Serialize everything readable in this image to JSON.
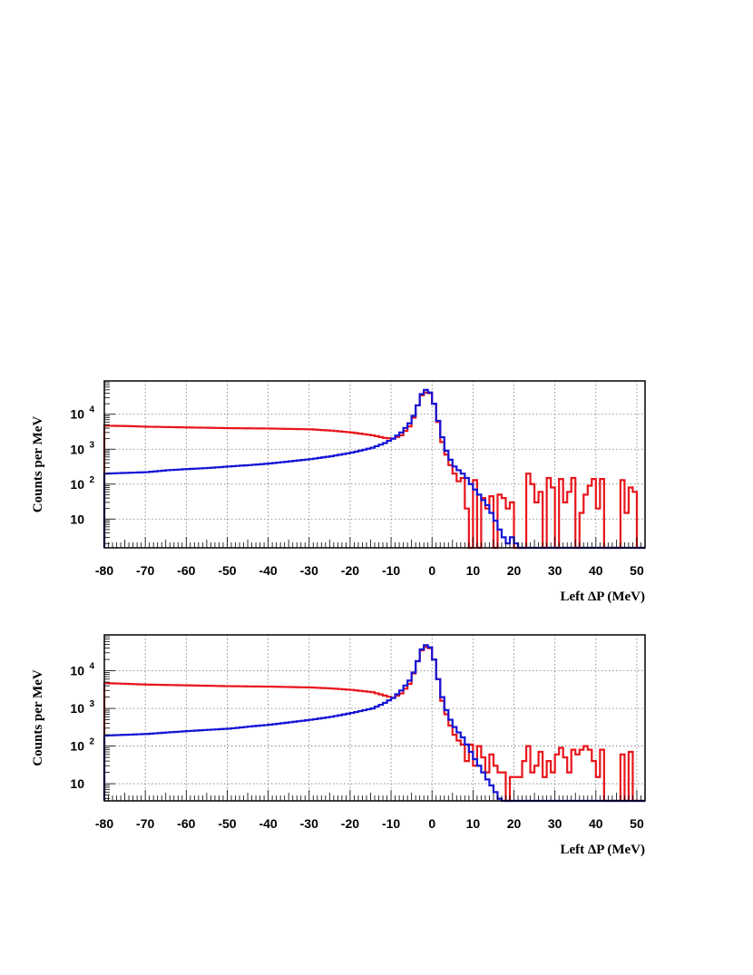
{
  "chart_data": [
    {
      "type": "histogram",
      "xlabel": "Left ΔP (MeV)",
      "ylabel": "Counts per MeV",
      "xlim": [
        -80,
        52
      ],
      "ylim": [
        1.5,
        90000
      ],
      "yscale": "log",
      "xticks": [
        -80,
        -70,
        -60,
        -50,
        -40,
        -30,
        -20,
        -10,
        0,
        10,
        20,
        30,
        40,
        50
      ],
      "yticks": [
        {
          "value": 10,
          "base": "10",
          "exp": ""
        },
        {
          "value": 100,
          "base": "10",
          "exp": "2"
        },
        {
          "value": 1000,
          "base": "10",
          "exp": "3"
        },
        {
          "value": 10000,
          "base": "10",
          "exp": "4"
        }
      ],
      "grid": true,
      "bin_width": 1,
      "series": [
        {
          "color": "#e8151b",
          "anchors": [
            [
              -80,
              4700
            ],
            [
              -75,
              4600
            ],
            [
              -70,
              4400
            ],
            [
              -60,
              4200
            ],
            [
              -50,
              4000
            ],
            [
              -40,
              3900
            ],
            [
              -30,
              3700
            ],
            [
              -25,
              3400
            ],
            [
              -20,
              3000
            ],
            [
              -15,
              2500
            ],
            [
              -12,
              2100
            ],
            [
              -10,
              2000
            ],
            [
              -8,
              2500
            ],
            [
              -6,
              4500
            ],
            [
              -5,
              8000
            ],
            [
              -4,
              18000
            ],
            [
              -3,
              35000
            ],
            [
              -2,
              42000
            ],
            [
              -1,
              40000
            ],
            [
              0,
              20000
            ],
            [
              1,
              6000
            ],
            [
              2,
              1600
            ],
            [
              3,
              700
            ],
            [
              4,
              350
            ],
            [
              5,
              200
            ],
            [
              6,
              120
            ]
          ],
          "sparse": [
            [
              7,
              150
            ],
            [
              8,
              20
            ],
            [
              10,
              130
            ],
            [
              12,
              40
            ],
            [
              13,
              20
            ],
            [
              14,
              45
            ],
            [
              16,
              50
            ],
            [
              17,
              40
            ],
            [
              18,
              20
            ],
            [
              19,
              30
            ],
            [
              23,
              200
            ],
            [
              24,
              100
            ],
            [
              25,
              30
            ],
            [
              26,
              60
            ],
            [
              28,
              150
            ],
            [
              29,
              80
            ],
            [
              31,
              140
            ],
            [
              32,
              30
            ],
            [
              33,
              60
            ],
            [
              34,
              150
            ],
            [
              36,
              15
            ],
            [
              37,
              50
            ],
            [
              38,
              90
            ],
            [
              39,
              140
            ],
            [
              40,
              20
            ],
            [
              41,
              140
            ],
            [
              46,
              130
            ],
            [
              47,
              15
            ],
            [
              48,
              80
            ],
            [
              49,
              60
            ]
          ]
        },
        {
          "color": "#1414d6",
          "anchors": [
            [
              -80,
              200
            ],
            [
              -75,
              210
            ],
            [
              -70,
              220
            ],
            [
              -65,
              250
            ],
            [
              -60,
              270
            ],
            [
              -55,
              290
            ],
            [
              -50,
              320
            ],
            [
              -45,
              350
            ],
            [
              -40,
              390
            ],
            [
              -35,
              450
            ],
            [
              -30,
              520
            ],
            [
              -25,
              630
            ],
            [
              -20,
              800
            ],
            [
              -15,
              1100
            ],
            [
              -12,
              1500
            ],
            [
              -10,
              2000
            ],
            [
              -8,
              3000
            ],
            [
              -6,
              5500
            ],
            [
              -5,
              9000
            ],
            [
              -4,
              18000
            ],
            [
              -3,
              38000
            ],
            [
              -2,
              50000
            ],
            [
              -1,
              42000
            ],
            [
              0,
              20000
            ],
            [
              1,
              6500
            ],
            [
              2,
              2200
            ],
            [
              3,
              900
            ],
            [
              4,
              500
            ],
            [
              5,
              320
            ],
            [
              6,
              250
            ],
            [
              7,
              200
            ],
            [
              8,
              150
            ],
            [
              9,
              100
            ],
            [
              10,
              70
            ],
            [
              11,
              50
            ],
            [
              12,
              35
            ],
            [
              13,
              25
            ],
            [
              14,
              15
            ],
            [
              15,
              9
            ],
            [
              16,
              5
            ],
            [
              17,
              3
            ],
            [
              18,
              2
            ],
            [
              19,
              3
            ],
            [
              20,
              2
            ]
          ]
        }
      ]
    },
    {
      "type": "histogram",
      "xlabel": "Left ΔP (MeV)",
      "ylabel": "Counts per MeV",
      "xlim": [
        -80,
        52
      ],
      "ylim": [
        3.5,
        90000
      ],
      "yscale": "log",
      "xticks": [
        -80,
        -70,
        -60,
        -50,
        -40,
        -30,
        -20,
        -10,
        0,
        10,
        20,
        30,
        40,
        50
      ],
      "yticks": [
        {
          "value": 10,
          "base": "10",
          "exp": ""
        },
        {
          "value": 100,
          "base": "10",
          "exp": "2"
        },
        {
          "value": 1000,
          "base": "10",
          "exp": "3"
        },
        {
          "value": 10000,
          "base": "10",
          "exp": "4"
        }
      ],
      "grid": true,
      "bin_width": 1,
      "series": [
        {
          "color": "#e8151b",
          "anchors": [
            [
              -80,
              4700
            ],
            [
              -75,
              4500
            ],
            [
              -70,
              4300
            ],
            [
              -60,
              4100
            ],
            [
              -50,
              3900
            ],
            [
              -40,
              3800
            ],
            [
              -30,
              3600
            ],
            [
              -25,
              3400
            ],
            [
              -20,
              3100
            ],
            [
              -15,
              2700
            ],
            [
              -12,
              2200
            ],
            [
              -10,
              1900
            ],
            [
              -8,
              2500
            ],
            [
              -6,
              4500
            ],
            [
              -5,
              8500
            ],
            [
              -4,
              18000
            ],
            [
              -3,
              35000
            ],
            [
              -2,
              43000
            ],
            [
              -1,
              40000
            ],
            [
              0,
              20000
            ],
            [
              1,
              6000
            ],
            [
              2,
              1600
            ],
            [
              3,
              700
            ],
            [
              4,
              350
            ],
            [
              5,
              200
            ],
            [
              6,
              140
            ]
          ],
          "sparse": [
            [
              7,
              110
            ],
            [
              8,
              40
            ],
            [
              9,
              110
            ],
            [
              10,
              30
            ],
            [
              11,
              100
            ],
            [
              12,
              50
            ],
            [
              13,
              20
            ],
            [
              14,
              60
            ],
            [
              15,
              30
            ],
            [
              16,
              20
            ],
            [
              17,
              20
            ],
            [
              19,
              15
            ],
            [
              20,
              15
            ],
            [
              21,
              15
            ],
            [
              22,
              40
            ],
            [
              23,
              100
            ],
            [
              24,
              20
            ],
            [
              25,
              30
            ],
            [
              26,
              70
            ],
            [
              27,
              15
            ],
            [
              28,
              40
            ],
            [
              29,
              20
            ],
            [
              30,
              60
            ],
            [
              31,
              90
            ],
            [
              32,
              50
            ],
            [
              33,
              20
            ],
            [
              34,
              80
            ],
            [
              35,
              60
            ],
            [
              36,
              80
            ],
            [
              37,
              100
            ],
            [
              38,
              80
            ],
            [
              39,
              40
            ],
            [
              40,
              15
            ],
            [
              41,
              80
            ],
            [
              46,
              60
            ],
            [
              48,
              70
            ]
          ]
        },
        {
          "color": "#1414d6",
          "anchors": [
            [
              -80,
              190
            ],
            [
              -75,
              200
            ],
            [
              -70,
              210
            ],
            [
              -65,
              230
            ],
            [
              -60,
              250
            ],
            [
              -55,
              270
            ],
            [
              -50,
              290
            ],
            [
              -45,
              330
            ],
            [
              -40,
              370
            ],
            [
              -35,
              430
            ],
            [
              -30,
              500
            ],
            [
              -25,
              600
            ],
            [
              -20,
              760
            ],
            [
              -15,
              1000
            ],
            [
              -12,
              1400
            ],
            [
              -10,
              1900
            ],
            [
              -8,
              3000
            ],
            [
              -6,
              5500
            ],
            [
              -5,
              9000
            ],
            [
              -4,
              18000
            ],
            [
              -3,
              37000
            ],
            [
              -2,
              48000
            ],
            [
              -1,
              42000
            ],
            [
              0,
              20000
            ],
            [
              1,
              6000
            ],
            [
              2,
              2000
            ],
            [
              3,
              900
            ],
            [
              4,
              500
            ],
            [
              5,
              320
            ],
            [
              6,
              230
            ],
            [
              7,
              170
            ],
            [
              8,
              110
            ],
            [
              9,
              70
            ],
            [
              10,
              45
            ],
            [
              11,
              30
            ],
            [
              12,
              20
            ],
            [
              13,
              13
            ],
            [
              14,
              9
            ],
            [
              15,
              6
            ],
            [
              16,
              4
            ],
            [
              17,
              3
            ]
          ]
        }
      ]
    }
  ]
}
